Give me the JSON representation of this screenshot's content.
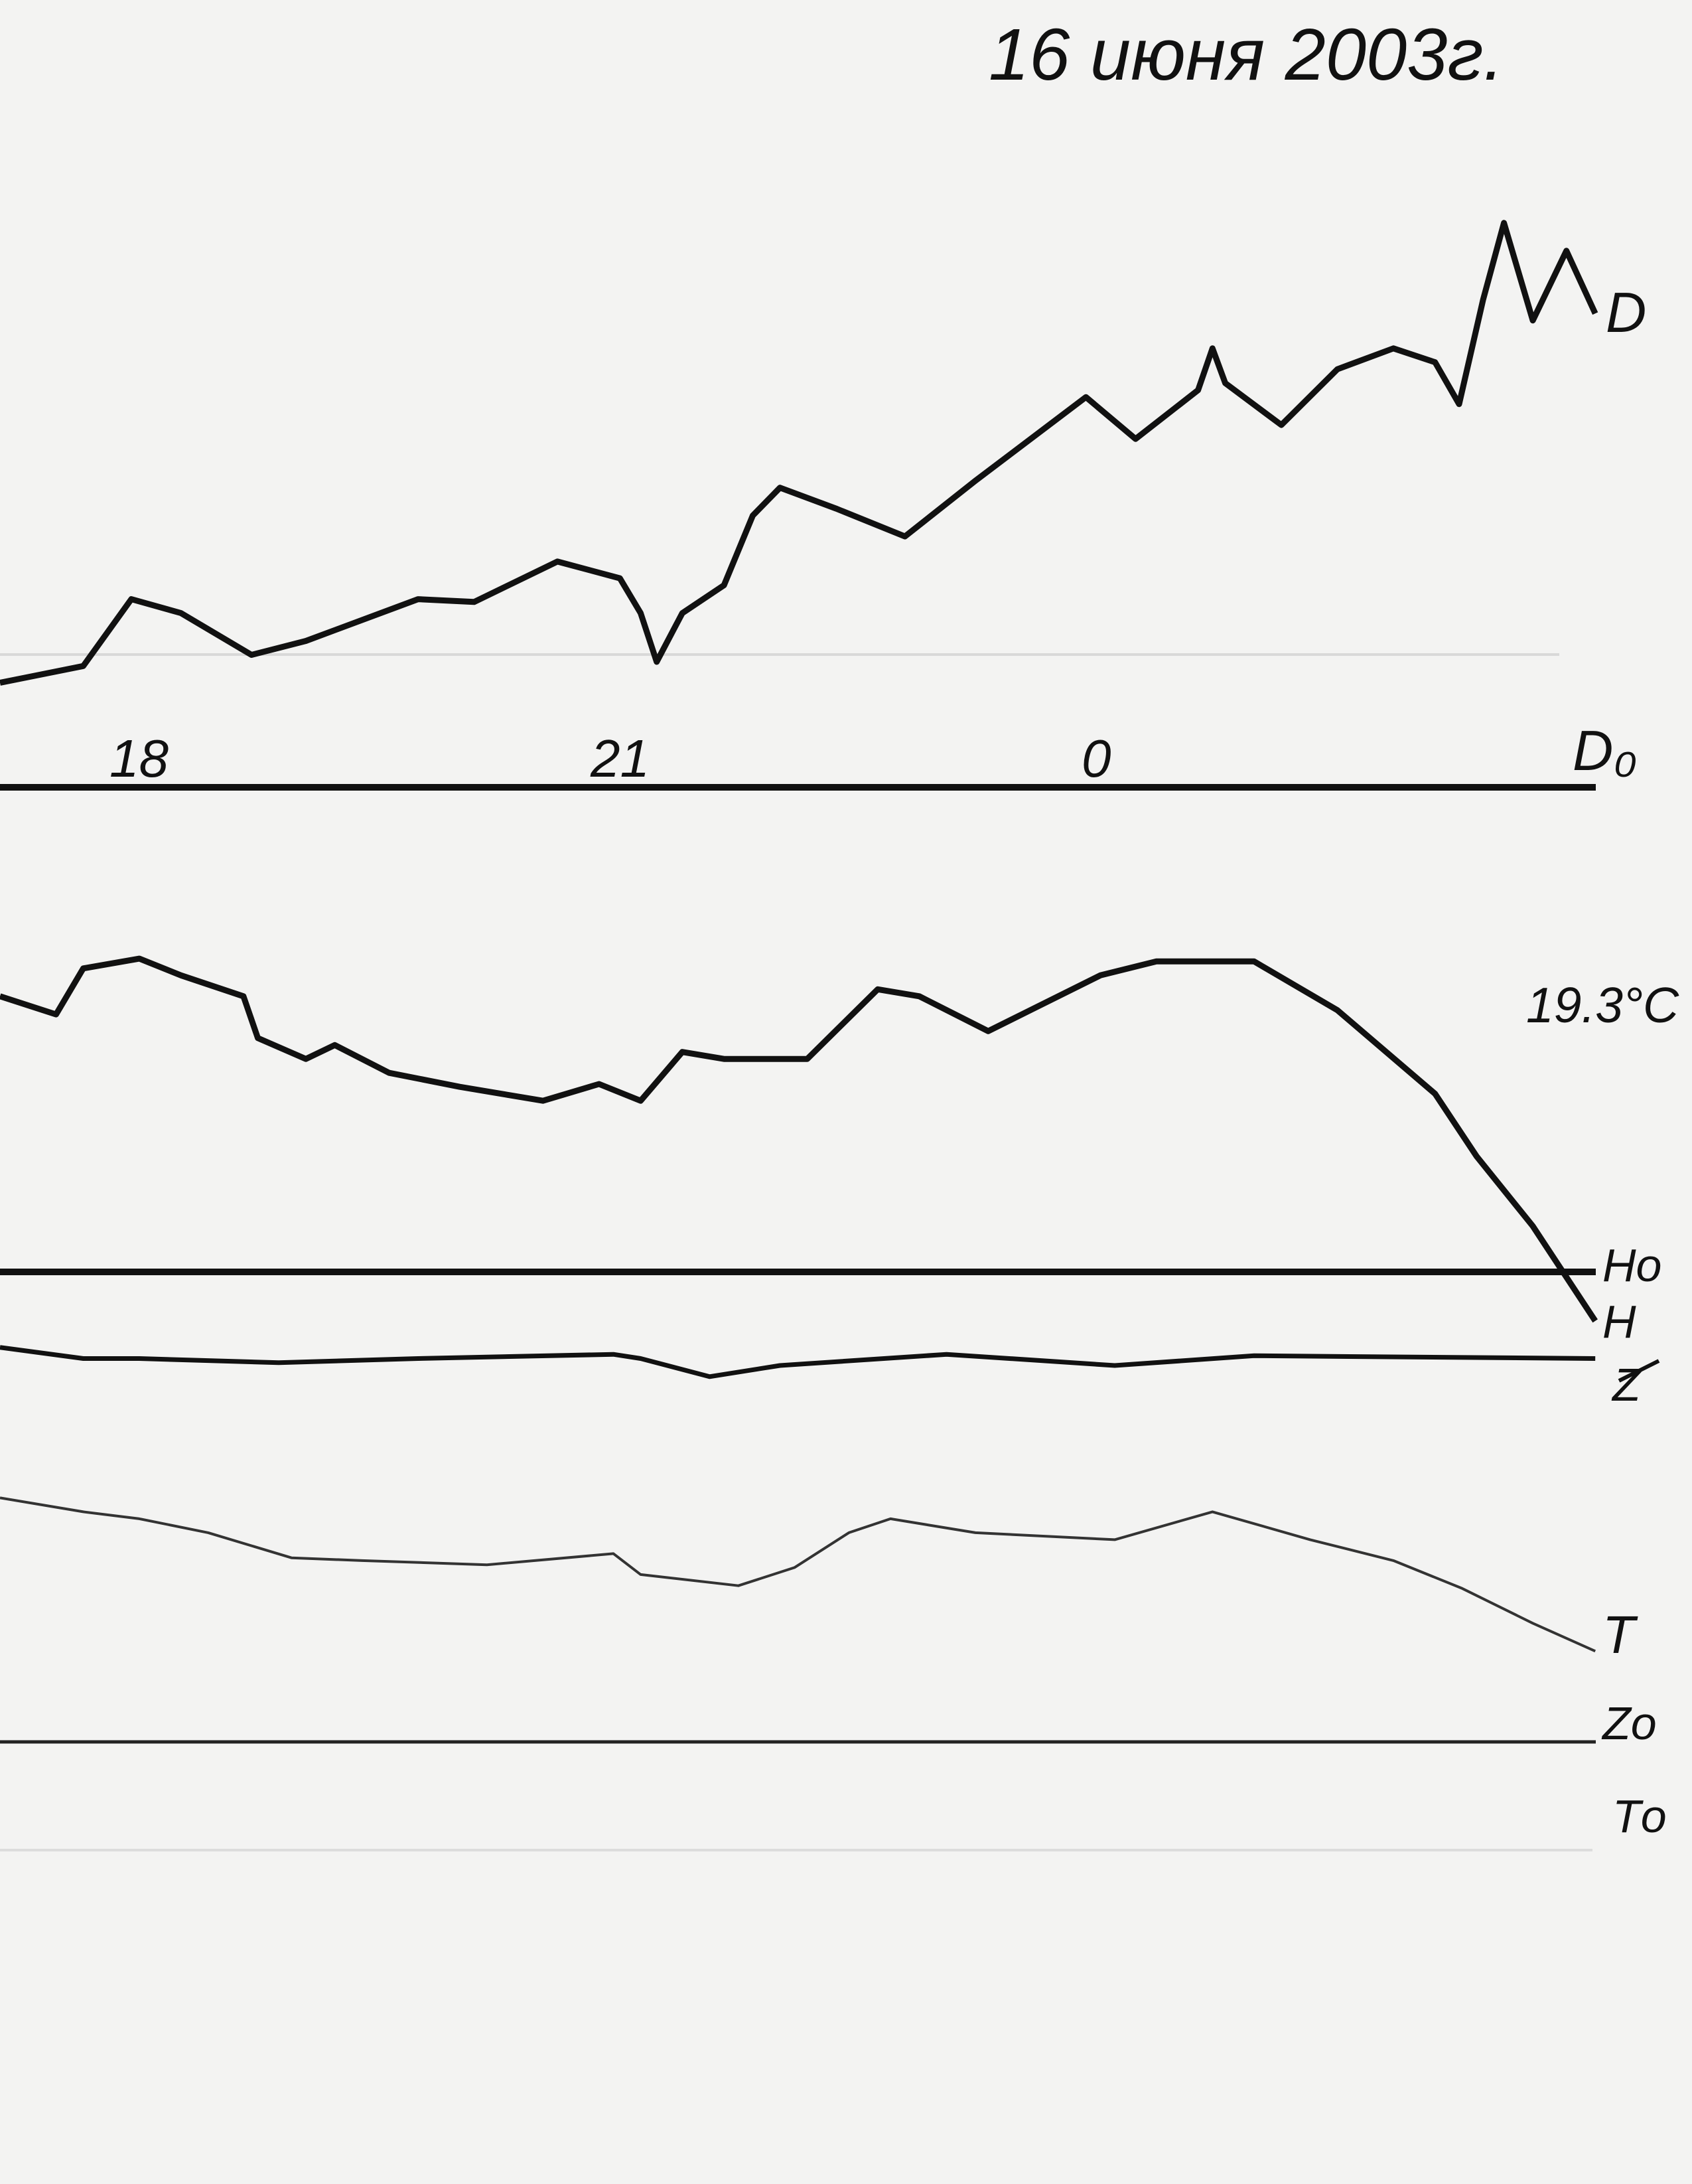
{
  "title": "16 июня 2003г.",
  "chart_data": {
    "type": "line",
    "title": "16 июня 2003г.",
    "x_tick_labels": [
      "18",
      "21",
      "0"
    ],
    "x_ticks": [
      18,
      21,
      0
    ],
    "x_unit": "hour of day",
    "grid": false,
    "legend": "none",
    "temperature_label": "19.3°C",
    "baseline_labels": {
      "D0": "D₀",
      "H0": "Hо",
      "Z0": "Zо",
      "T0": "Tо"
    },
    "series": [
      {
        "name": "D",
        "color": "#111111",
        "points": [
          [
            17.17,
            7.5
          ],
          [
            17.69,
            8.7
          ],
          [
            17.99,
            13.5
          ],
          [
            18.3,
            12.5
          ],
          [
            18.74,
            9.5
          ],
          [
            19.08,
            10.5
          ],
          [
            19.78,
            13.5
          ],
          [
            20.13,
            13.3
          ],
          [
            20.65,
            16.2
          ],
          [
            21.04,
            15
          ],
          [
            21.17,
            12.5
          ],
          [
            21.27,
            9
          ],
          [
            21.43,
            12.5
          ],
          [
            21.69,
            14.5
          ],
          [
            21.87,
            19.5
          ],
          [
            22.04,
            21.5
          ],
          [
            22.39,
            20
          ],
          [
            22.82,
            18
          ],
          [
            23.26,
            22
          ],
          [
            23.95,
            28
          ],
          [
            0.26,
            25
          ],
          [
            0.65,
            28.5
          ],
          [
            0.74,
            31.5
          ],
          [
            0.82,
            29
          ],
          [
            1.17,
            26
          ],
          [
            1.52,
            30
          ],
          [
            1.87,
            31.5
          ],
          [
            2.13,
            30.5
          ],
          [
            2.28,
            27.5
          ],
          [
            2.43,
            35
          ],
          [
            2.56,
            40.5
          ],
          [
            2.74,
            33.5
          ],
          [
            2.95,
            38.5
          ],
          [
            3.13,
            34
          ]
        ]
      },
      {
        "name": "H",
        "color": "#111111",
        "points": [
          [
            17.17,
            19.8
          ],
          [
            17.52,
            18.5
          ],
          [
            17.69,
            21.8
          ],
          [
            18.04,
            22.5
          ],
          [
            18.3,
            21.3
          ],
          [
            18.69,
            19.8
          ],
          [
            18.78,
            16.8
          ],
          [
            19.08,
            15.3
          ],
          [
            19.26,
            16.3
          ],
          [
            19.6,
            14.3
          ],
          [
            20.04,
            13.3
          ],
          [
            20.56,
            12.3
          ],
          [
            20.91,
            13.5
          ],
          [
            21.17,
            12.3
          ],
          [
            21.43,
            15.8
          ],
          [
            21.69,
            15.3
          ],
          [
            22.21,
            15.3
          ],
          [
            22.65,
            20.3
          ],
          [
            22.91,
            19.8
          ],
          [
            23.34,
            17.3
          ],
          [
            0.04,
            21.3
          ],
          [
            0.39,
            22.3
          ],
          [
            1.0,
            22.3
          ],
          [
            1.52,
            18.8
          ],
          [
            2.13,
            12.8
          ],
          [
            2.39,
            8.3
          ],
          [
            2.74,
            3.3
          ],
          [
            3.13,
            -3.5
          ]
        ]
      },
      {
        "name": "Z",
        "color": "#111111",
        "points": [
          [
            17.17,
            28.3
          ],
          [
            17.69,
            27.5
          ],
          [
            18.04,
            27.5
          ],
          [
            18.91,
            27.2
          ],
          [
            19.78,
            27.5
          ],
          [
            21.0,
            27.8
          ],
          [
            21.17,
            27.5
          ],
          [
            21.6,
            26.2
          ],
          [
            22.04,
            27
          ],
          [
            23.08,
            27.8
          ],
          [
            0.13,
            27
          ],
          [
            1.0,
            27.7
          ],
          [
            3.13,
            27.5
          ]
        ]
      },
      {
        "name": "T",
        "color": "#333333",
        "points": [
          [
            17.17,
            22.5
          ],
          [
            17.69,
            21.5
          ],
          [
            18.04,
            21
          ],
          [
            18.47,
            20
          ],
          [
            18.99,
            18.2
          ],
          [
            19.43,
            18
          ],
          [
            20.21,
            17.7
          ],
          [
            21.0,
            18.5
          ],
          [
            21.17,
            17
          ],
          [
            21.78,
            16.2
          ],
          [
            22.13,
            17.5
          ],
          [
            22.47,
            20
          ],
          [
            22.73,
            21
          ],
          [
            23.26,
            20
          ],
          [
            0.13,
            19.5
          ],
          [
            0.74,
            21.5
          ],
          [
            1.35,
            19.5
          ],
          [
            1.87,
            18
          ],
          [
            2.3,
            16
          ],
          [
            2.74,
            13.5
          ],
          [
            3.13,
            11.5
          ]
        ]
      }
    ]
  }
}
